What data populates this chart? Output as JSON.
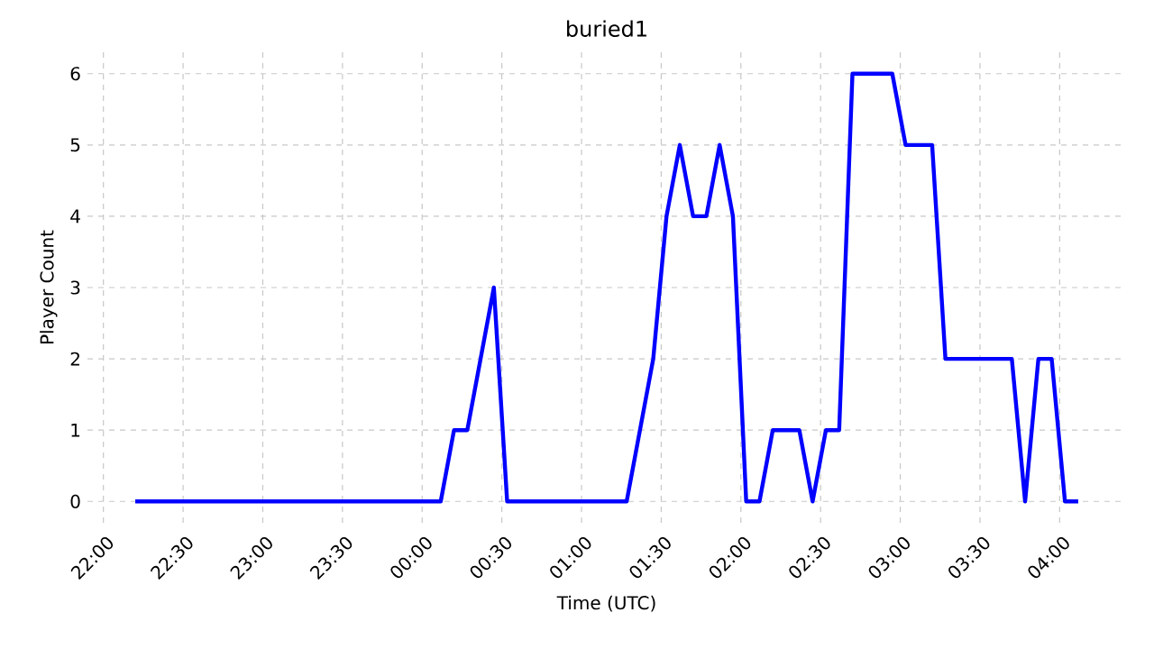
{
  "chart_data": {
    "type": "line",
    "title": "buried1",
    "xlabel": "Time (UTC)",
    "ylabel": "Player Count",
    "x": [
      "2000-01-01T22:12",
      "2000-01-02T00:07",
      "2000-01-02T00:12",
      "2000-01-02T00:17",
      "2000-01-02T00:27",
      "2000-01-02T00:32",
      "2000-01-02T01:17",
      "2000-01-02T01:27",
      "2000-01-02T01:32",
      "2000-01-02T01:37",
      "2000-01-02T01:42",
      "2000-01-02T01:47",
      "2000-01-02T01:52",
      "2000-01-02T01:57",
      "2000-01-02T02:02",
      "2000-01-02T02:07",
      "2000-01-02T02:12",
      "2000-01-02T02:22",
      "2000-01-02T02:27",
      "2000-01-02T02:32",
      "2000-01-02T02:37",
      "2000-01-02T02:42",
      "2000-01-02T02:57",
      "2000-01-02T03:02",
      "2000-01-02T03:12",
      "2000-01-02T03:17",
      "2000-01-02T03:42",
      "2000-01-02T03:47",
      "2000-01-02T03:52",
      "2000-01-02T03:57",
      "2000-01-02T04:02",
      "2000-01-02T04:07"
    ],
    "series": [
      {
        "color": "#0000ff",
        "values": [
          0,
          0,
          1,
          1,
          3,
          0,
          0,
          2,
          4,
          5,
          4,
          4,
          5,
          4,
          0,
          0,
          1,
          1,
          0,
          1,
          1,
          6,
          6,
          5,
          5,
          2,
          2,
          0,
          2,
          2,
          0,
          0
        ]
      }
    ],
    "xlim": [
      "2000-01-01T21:54",
      "2000-01-02T04:25"
    ],
    "ylim": [
      -0.3,
      6.3
    ],
    "xticks": [
      {
        "value": "2000-01-01T22:00",
        "label": "22:00"
      },
      {
        "value": "2000-01-01T22:30",
        "label": "22:30"
      },
      {
        "value": "2000-01-01T23:00",
        "label": "23:00"
      },
      {
        "value": "2000-01-01T23:30",
        "label": "23:30"
      },
      {
        "value": "2000-01-02T00:00",
        "label": "00:00"
      },
      {
        "value": "2000-01-02T00:30",
        "label": "00:30"
      },
      {
        "value": "2000-01-02T01:00",
        "label": "01:00"
      },
      {
        "value": "2000-01-02T01:30",
        "label": "01:30"
      },
      {
        "value": "2000-01-02T02:00",
        "label": "02:00"
      },
      {
        "value": "2000-01-02T02:30",
        "label": "02:30"
      },
      {
        "value": "2000-01-02T03:00",
        "label": "03:00"
      },
      {
        "value": "2000-01-02T03:30",
        "label": "03:30"
      },
      {
        "value": "2000-01-02T04:00",
        "label": "04:00"
      }
    ],
    "yticks": [
      0,
      1,
      2,
      3,
      4,
      5,
      6
    ],
    "grid": true,
    "line_style": "solid"
  }
}
